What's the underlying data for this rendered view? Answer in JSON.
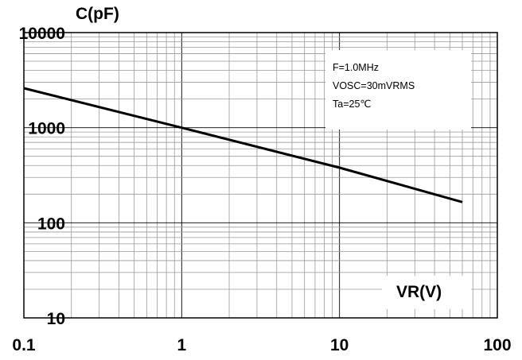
{
  "chart_data": {
    "type": "line",
    "x_scale": "log",
    "y_scale": "log",
    "xlim": [
      0.1,
      100
    ],
    "ylim": [
      10,
      10000
    ],
    "x_ticks": [
      0.1,
      1,
      10,
      100
    ],
    "x_tick_labels": [
      "0.1",
      "1",
      "10",
      "100"
    ],
    "y_ticks": [
      10,
      100,
      1000,
      10000
    ],
    "y_tick_labels": [
      "10",
      "100",
      "1000",
      "10000"
    ],
    "xlabel": "VR(V)",
    "ylabel": "C(pF)",
    "grid": true,
    "series": [
      {
        "x": [
          0.1,
          1,
          10,
          60
        ],
        "y": [
          2600,
          1000,
          380,
          165
        ]
      }
    ],
    "annotations": [
      "F=1.0MHz",
      "VOSC=30mVRMS",
      "Ta=25℃"
    ],
    "colors": {
      "line": "#000000",
      "grid": "#9a9a9a",
      "frame": "#000000",
      "background": "#ffffff"
    }
  }
}
